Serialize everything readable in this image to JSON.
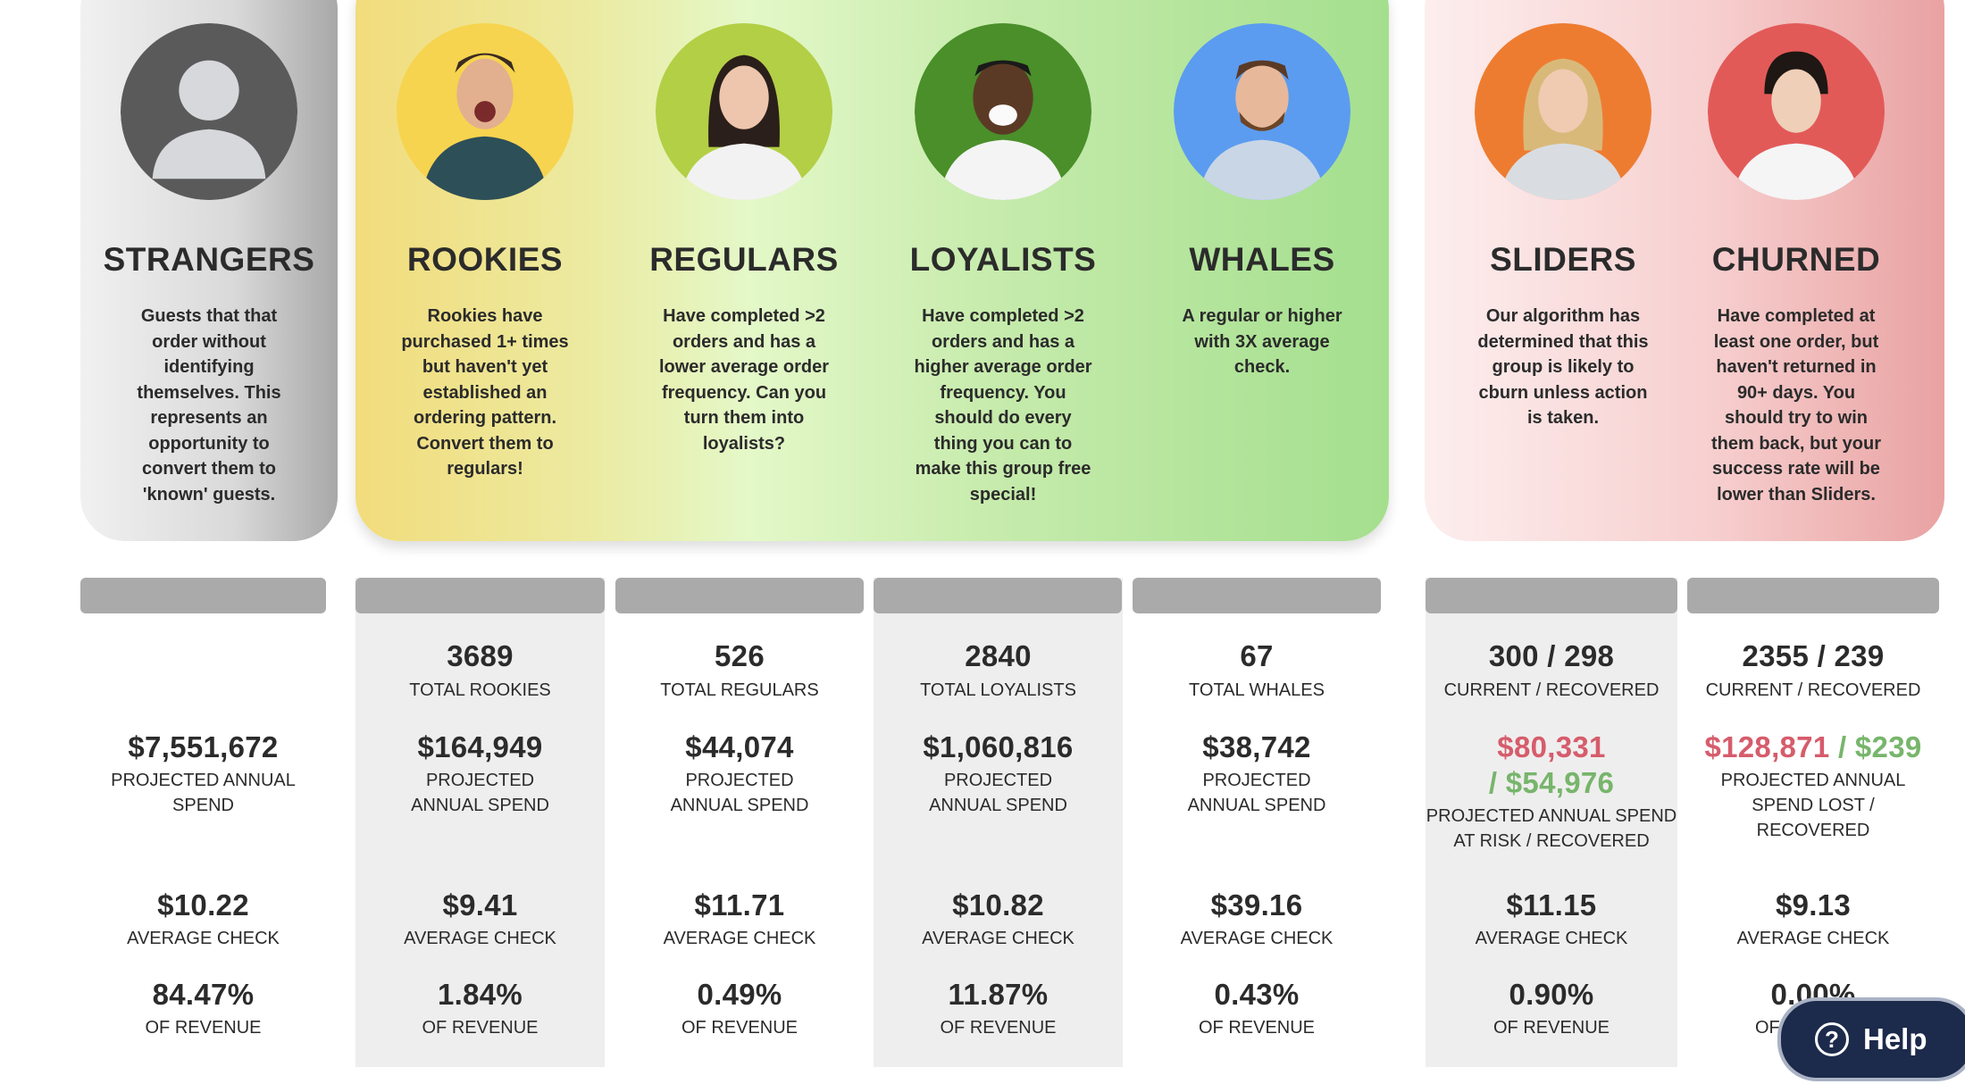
{
  "segments": [
    {
      "key": "strangers",
      "title": "STRANGERS",
      "color": "#5a5a5a",
      "description": "Guests that that order without identifying themselves. This represents an opportunity to convert them to 'known' guests."
    },
    {
      "key": "rookies",
      "title": "ROOKIES",
      "color": "#f7d44f",
      "description": "Rookies have purchased 1+ times but haven't yet established an ordering pattern. Convert them to regulars!"
    },
    {
      "key": "regulars",
      "title": "REGULARS",
      "color": "#b3cf45",
      "description": "Have completed >2 orders and has a lower average order frequency. Can you turn them into loyalists?"
    },
    {
      "key": "loyalists",
      "title": "LOYALISTS",
      "color": "#4a8f2a",
      "description": "Have completed >2 orders and has a higher average order frequency. You should do every thing you can to make this group free special!"
    },
    {
      "key": "whales",
      "title": "WHALES",
      "color": "#5b9cf0",
      "description": "A regular or higher with 3X average check."
    },
    {
      "key": "sliders",
      "title": "SLIDERS",
      "color": "#ee7c30",
      "description": "Our algorithm has determined that this group is likely to cburn unless action is taken."
    },
    {
      "key": "churned",
      "title": "CHURNED",
      "color": "#e25a58",
      "description": "Have completed at least one order, but haven't returned in 90+ days. You should try to win them back, but your success rate will be lower than Sliders."
    }
  ],
  "stats": {
    "strangers": {
      "spend": "$7,551,672",
      "spend_label": "PROJECTED ANNUAL SPEND",
      "avg": "$10.22",
      "avg_label": "AVERAGE CHECK",
      "rev": "84.47%",
      "rev_label": "OF REVENUE"
    },
    "rookies": {
      "count": "3689",
      "count_label": "TOTAL ROOKIES",
      "spend": "$164,949",
      "spend_label": "PROJECTED ANNUAL SPEND",
      "avg": "$9.41",
      "avg_label": "AVERAGE CHECK",
      "rev": "1.84%",
      "rev_label": "OF REVENUE"
    },
    "regulars": {
      "count": "526",
      "count_label": "TOTAL REGULARS",
      "spend": "$44,074",
      "spend_label": "PROJECTED ANNUAL SPEND",
      "avg": "$11.71",
      "avg_label": "AVERAGE CHECK",
      "rev": "0.49%",
      "rev_label": "OF REVENUE"
    },
    "loyalists": {
      "count": "2840",
      "count_label": "TOTAL LOYALISTS",
      "spend": "$1,060,816",
      "spend_label": "PROJECTED ANNUAL SPEND",
      "avg": "$10.82",
      "avg_label": "AVERAGE CHECK",
      "rev": "11.87%",
      "rev_label": "OF REVENUE"
    },
    "whales": {
      "count": "67",
      "count_label": "TOTAL WHALES",
      "spend": "$38,742",
      "spend_label": "PROJECTED ANNUAL SPEND",
      "avg": "$39.16",
      "avg_label": "AVERAGE CHECK",
      "rev": "0.43%",
      "rev_label": "OF REVENUE"
    },
    "sliders": {
      "count": "300 / 298",
      "count_label": "CURRENT / RECOVERED",
      "spend_risk": "$80,331",
      "spend_recovered": "/ $54,976",
      "spend_label": "PROJECTED ANNUAL SPEND AT RISK / RECOVERED",
      "avg": "$11.15",
      "avg_label": "AVERAGE CHECK",
      "rev": "0.90%",
      "rev_label": "OF REVENUE"
    },
    "churned": {
      "count": "2355 / 239",
      "count_label": "CURRENT / RECOVERED",
      "spend_lost": "$128,871",
      "spend_sep": " / ",
      "spend_recovered": "$239",
      "spend_label": "PROJECTED ANNUAL SPEND LOST / RECOVERED",
      "avg": "$9.13",
      "avg_label": "AVERAGE CHECK",
      "rev": "0.00%",
      "rev_label": "OF REVENUE"
    }
  },
  "help": {
    "label": "Help",
    "icon": "question-circle-icon"
  }
}
